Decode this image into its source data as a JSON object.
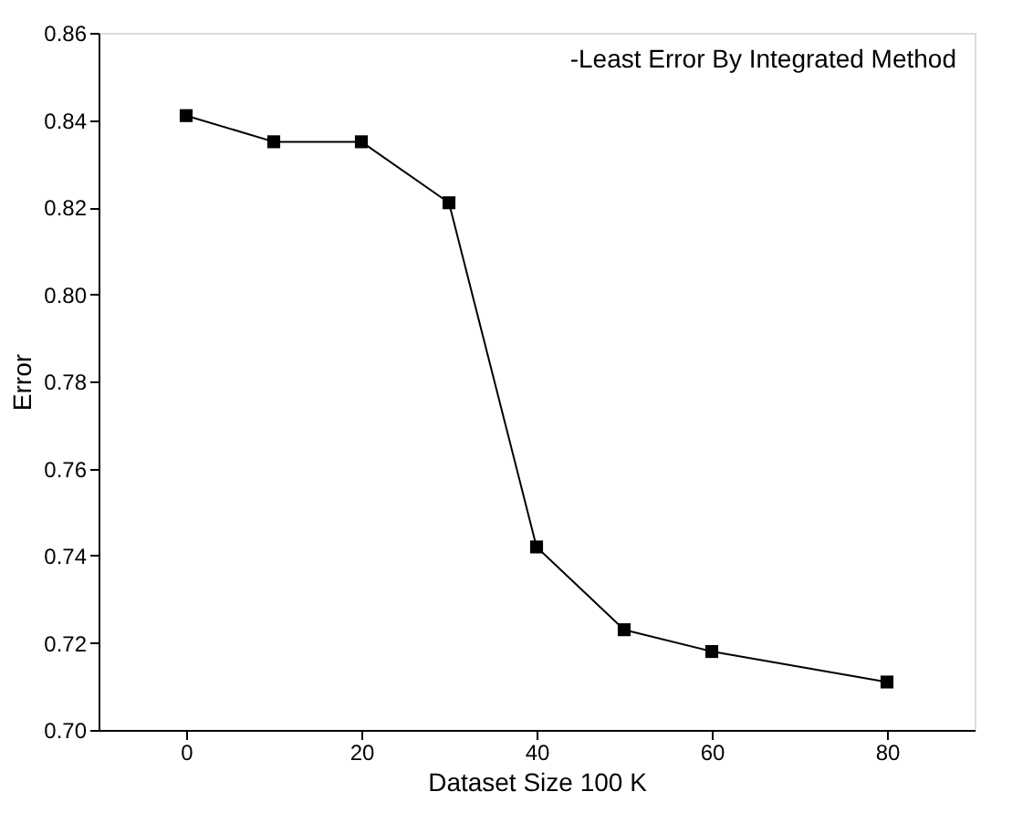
{
  "chart_data": {
    "type": "line",
    "xlabel": "Dataset Size 100 K",
    "ylabel": "Error",
    "annotations": [
      "-Least Error By Integrated Method"
    ],
    "x": [
      0,
      10,
      20,
      30,
      40,
      50,
      60,
      80
    ],
    "series": [
      {
        "color": "#000000",
        "values": [
          0.841,
          0.835,
          0.835,
          0.821,
          0.742,
          0.723,
          0.718,
          0.711
        ]
      }
    ],
    "xlim": [
      -10,
      90
    ],
    "xticks": [
      0,
      20,
      40,
      60,
      80
    ],
    "ylim": [
      0.7,
      0.86
    ],
    "yticks": [
      {
        "value": 0.7,
        "label": "0.70"
      },
      0.72,
      0.74,
      0.76,
      0.78,
      {
        "value": 0.8,
        "label": "0.80"
      },
      0.82,
      0.84,
      0.86
    ],
    "marker": "square",
    "line_style": "solid",
    "grid": false
  }
}
